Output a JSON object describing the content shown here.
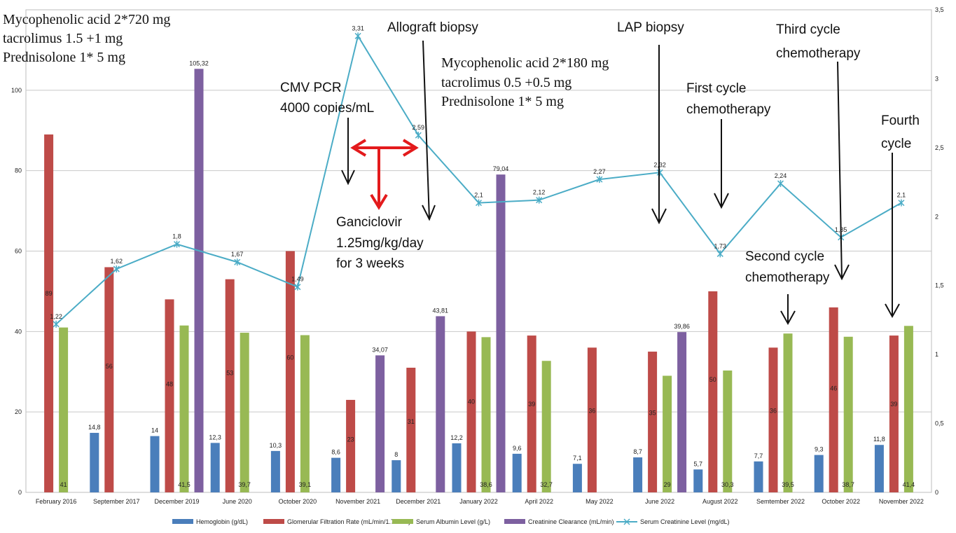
{
  "chart_data": {
    "type": "bar",
    "categories": [
      "February 2016",
      "September 2017",
      "December 2019",
      "June 2020",
      "October 2020",
      "November 2021",
      "December 2021",
      "January 2022",
      "April 2022",
      "May 2022",
      "June 2022",
      "August 2022",
      "Semtember 2022",
      "October 2022",
      "November 2022"
    ],
    "series": [
      {
        "name": "Hemoglobin (g/dL)",
        "type": "bar",
        "axis": "left",
        "color": "#4a7ebb",
        "label_pos": "top",
        "values": [
          null,
          14.8,
          14,
          12.3,
          10.3,
          8.6,
          8,
          12.2,
          9.6,
          7.1,
          8.7,
          5.7,
          7.7,
          9.3,
          11.8
        ],
        "labels": [
          "",
          "14,8",
          "14",
          "12,3",
          "10,3",
          "8,6",
          "8",
          "12,2",
          "9,6",
          "7,1",
          "8,7",
          "5,7",
          "7,7",
          "9,3",
          "11,8"
        ]
      },
      {
        "name": "Glomerular Filtration Rate (mL/min/1.73m2 )",
        "type": "bar",
        "axis": "left",
        "color": "#be4b48",
        "label_pos": "inside",
        "values": [
          89,
          56,
          48,
          53,
          60,
          23,
          31,
          40,
          39,
          36,
          35,
          50,
          36,
          46,
          39
        ],
        "labels": [
          "89",
          "56",
          "48",
          "53",
          "60",
          "23",
          "31",
          "40",
          "39",
          "36",
          "35",
          "50",
          "36",
          "46",
          "39"
        ]
      },
      {
        "name": "Serum Albumin Level (g/L)",
        "type": "bar",
        "axis": "left",
        "color": "#98b954",
        "label_pos": "bottom",
        "values": [
          41,
          null,
          41.5,
          39.7,
          39.1,
          null,
          null,
          38.6,
          32.7,
          null,
          29,
          30.3,
          39.5,
          38.7,
          41.4
        ],
        "labels": [
          "41",
          "",
          "41,5",
          "39,7",
          "39,1",
          "",
          "",
          "38,6",
          "32,7",
          "",
          "29",
          "30,3",
          "39,5",
          "38,7",
          "41,4"
        ]
      },
      {
        "name": "Creatinine Clearance (mL/min)",
        "type": "bar",
        "axis": "left",
        "color": "#7d60a0",
        "label_pos": "top",
        "values": [
          null,
          null,
          105.32,
          null,
          null,
          34.07,
          43.81,
          79.04,
          null,
          null,
          39.86,
          null,
          null,
          null,
          null
        ],
        "labels": [
          "",
          "",
          "105,32",
          "",
          "",
          "34,07",
          "43,81",
          "79,04",
          "",
          "",
          "39,86",
          "",
          "",
          "",
          ""
        ]
      },
      {
        "name": "Serum Creatinine Level (mg/dL)",
        "type": "line",
        "axis": "right",
        "color": "#4bacc6",
        "values": [
          1.22,
          1.62,
          1.8,
          1.67,
          1.49,
          3.31,
          2.59,
          2.1,
          2.12,
          2.27,
          2.32,
          1.73,
          2.24,
          1.85,
          2.1
        ],
        "labels": [
          "1,22",
          "1,62",
          "1,8",
          "1,67",
          "1,49",
          "3,31",
          "2,59",
          "2,1",
          "2,12",
          "2,27",
          "2,32",
          "1,73",
          "2,24",
          "1,85",
          "2,1"
        ]
      }
    ],
    "y_left": {
      "min": 0,
      "max": 120,
      "ticks": [
        0,
        20,
        40,
        60,
        80,
        100
      ],
      "tick_labels": [
        "0",
        "20",
        "40",
        "60",
        "80",
        "100"
      ]
    },
    "y_right": {
      "min": 0,
      "max": 3.5,
      "ticks": [
        0,
        0.5,
        1,
        1.5,
        2,
        2.5,
        3,
        3.5
      ],
      "tick_labels": [
        "0",
        "0,5",
        "1",
        "1,5",
        "2",
        "2,5",
        "3",
        "3,5"
      ]
    },
    "grid": true,
    "legend_position": "bottom",
    "title": "",
    "xlabel": "",
    "ylabel": ""
  },
  "annotations": {
    "regimen1": [
      "Mycophenolic acid 2*720 mg",
      "tacrolimus 1.5 +1 mg",
      "Prednisolone 1* 5 mg"
    ],
    "cmv": [
      "CMV PCR",
      "4000 copies/mL"
    ],
    "ganciclovir": [
      "Ganciclovir",
      "1.25mg/kg/day",
      "for 3 weeks"
    ],
    "allograft": "Allograft biopsy",
    "regimen2": [
      "Mycophenolic acid 2*180 mg",
      "tacrolimus 0.5 +0.5 mg",
      "Prednisolone 1* 5 mg"
    ],
    "lap": "LAP biopsy",
    "first_cycle": [
      "First cycle",
      "chemotherapy"
    ],
    "second_cycle": [
      "Second cycle",
      "chemotherapy"
    ],
    "third_cycle": [
      "Third cycle",
      "chemotherapy"
    ],
    "fourth_cycle": [
      "Fourth",
      "cycle"
    ]
  },
  "colors": {
    "arrow": "#111111",
    "red_arrow": "#e31a1c",
    "grid": "#c8c8c8"
  }
}
